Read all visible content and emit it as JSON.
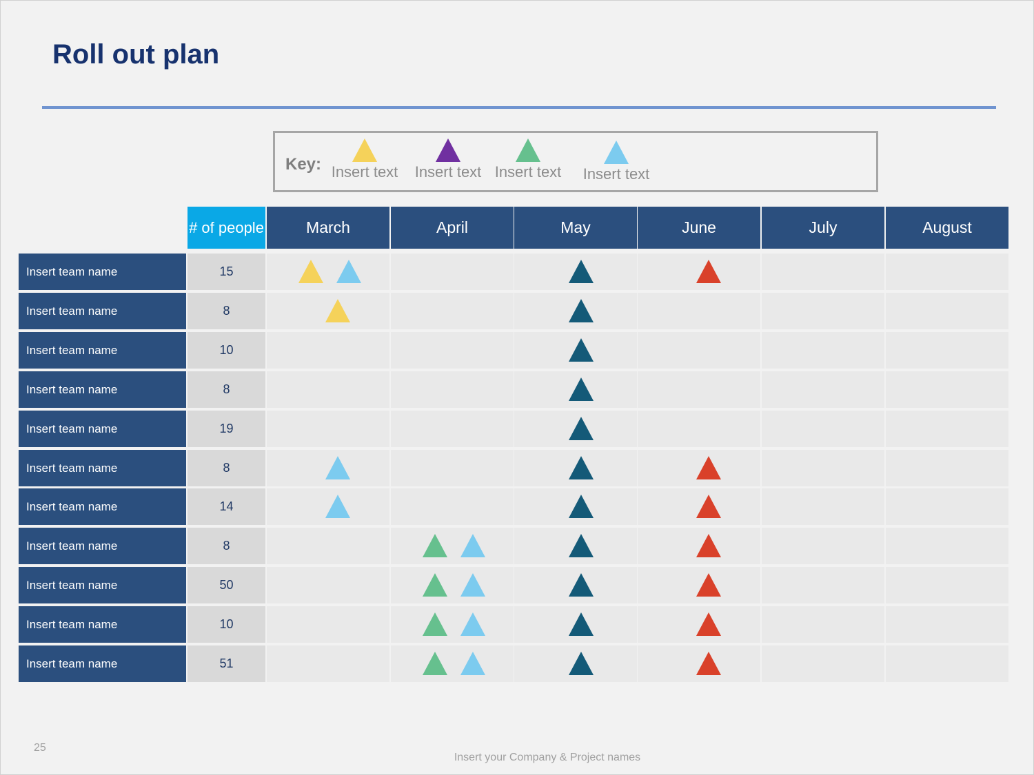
{
  "title": "Roll out plan",
  "colors": {
    "header": "#2b4f7e",
    "people_header": "#0aa8e6",
    "yellow": "#f5d25a",
    "purple": "#7030a0",
    "green": "#66c08e",
    "lightblue": "#7ccbef",
    "dark": "#145a78",
    "red": "#d9412a"
  },
  "key": {
    "label": "Key:",
    "items": [
      {
        "color": "yellow",
        "text": "Insert text"
      },
      {
        "color": "purple",
        "text": "Insert text"
      },
      {
        "color": "green",
        "text": "Insert text"
      },
      {
        "color": "lightblue",
        "text": "Insert text"
      }
    ]
  },
  "table": {
    "people_header": "# of people",
    "months": [
      "March",
      "April",
      "May",
      "June",
      "July",
      "August"
    ],
    "rows": [
      {
        "name": "Insert team name",
        "people": "15",
        "markers": {
          "March": [
            "yellow",
            "lightblue"
          ],
          "May": [
            "dark"
          ],
          "June": [
            "red"
          ]
        }
      },
      {
        "name": "Insert team name",
        "people": "8",
        "markers": {
          "March": [
            "yellow"
          ],
          "May": [
            "dark"
          ]
        }
      },
      {
        "name": "Insert team name",
        "people": "10",
        "markers": {
          "May": [
            "dark"
          ]
        }
      },
      {
        "name": "Insert team name",
        "people": "8",
        "markers": {
          "May": [
            "dark"
          ]
        }
      },
      {
        "name": "Insert team name",
        "people": "19",
        "markers": {
          "May": [
            "dark"
          ]
        }
      },
      {
        "name": "Insert team name",
        "people": "8",
        "markers": {
          "March": [
            "lightblue"
          ],
          "May": [
            "dark"
          ],
          "June": [
            "red"
          ]
        }
      },
      {
        "name": "Insert team name",
        "people": "14",
        "markers": {
          "March": [
            "lightblue"
          ],
          "May": [
            "dark"
          ],
          "June": [
            "red"
          ]
        }
      },
      {
        "name": "Insert team name",
        "people": "8",
        "markers": {
          "April": [
            "green",
            "lightblue"
          ],
          "May": [
            "dark"
          ],
          "June": [
            "red"
          ]
        }
      },
      {
        "name": "Insert team name",
        "people": "50",
        "markers": {
          "April": [
            "green",
            "lightblue"
          ],
          "May": [
            "dark"
          ],
          "June": [
            "red"
          ]
        }
      },
      {
        "name": "Insert team name",
        "people": "10",
        "markers": {
          "April": [
            "green",
            "lightblue"
          ],
          "May": [
            "dark"
          ],
          "June": [
            "red"
          ]
        }
      },
      {
        "name": "Insert team name",
        "people": "51",
        "markers": {
          "April": [
            "green",
            "lightblue"
          ],
          "May": [
            "dark"
          ],
          "June": [
            "red"
          ]
        }
      }
    ]
  },
  "page_number": "25",
  "footer": "Insert your Company & Project names"
}
